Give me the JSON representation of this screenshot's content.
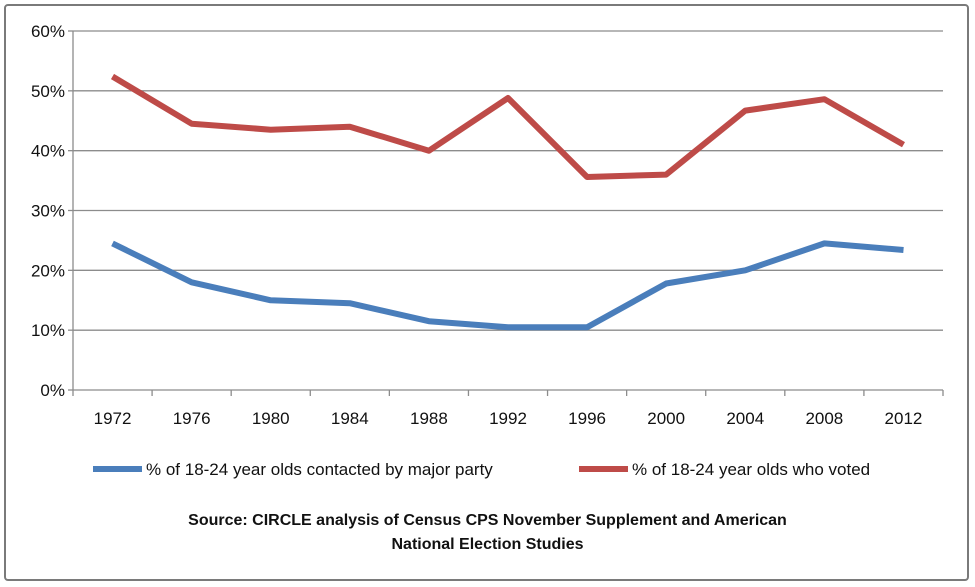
{
  "chart_data": {
    "type": "line",
    "categories": [
      "1972",
      "1976",
      "1980",
      "1984",
      "1988",
      "1992",
      "1996",
      "2000",
      "2004",
      "2008",
      "2012"
    ],
    "series": [
      {
        "name": "% of 18-24 year olds contacted by major party",
        "color": "#4a7ebb",
        "values": [
          24.5,
          18,
          15,
          14.5,
          11.5,
          10.5,
          10.5,
          17.8,
          20,
          24.5,
          23.4
        ]
      },
      {
        "name": "% of 18-24 year olds who voted",
        "color": "#be4b48",
        "values": [
          52.4,
          44.5,
          43.5,
          44,
          40,
          48.8,
          35.6,
          36,
          46.7,
          48.6,
          41
        ]
      }
    ],
    "ylim": [
      0,
      60
    ],
    "yticks": [
      "0%",
      "10%",
      "20%",
      "30%",
      "40%",
      "50%",
      "60%"
    ],
    "grid": true,
    "legend_position": "bottom"
  },
  "source_line1": "Source: CIRCLE analysis of Census CPS November Supplement and American",
  "source_line2": "National Election Studies"
}
